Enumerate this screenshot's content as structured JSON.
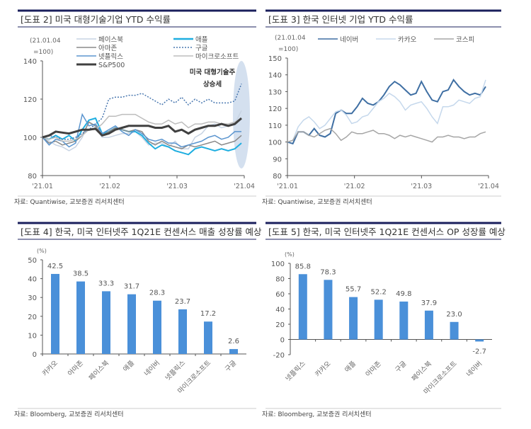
{
  "chart_data": [
    {
      "type": "line",
      "title": "[도표 2] 미국 대형기술기업 YTD 수익률",
      "unit": "(21.01.04\n=100)",
      "unit_lines": [
        "(21.01.04",
        "=100)"
      ],
      "ylim": [
        80,
        140
      ],
      "yticks": [
        80,
        100,
        120,
        140
      ],
      "xticks": [
        "'21.01",
        "'21.02",
        "'21.03",
        "'21.04"
      ],
      "annotation": [
        "미국 대형기술주",
        "상승세"
      ],
      "source": "자료: Quantiwise, 교보증권 리서치센터",
      "series": [
        {
          "name": "페이스북",
          "color": "#c7d3e3",
          "values": [
            100,
            98,
            96,
            95,
            93,
            95,
            100,
            108,
            105,
            100,
            100,
            101,
            102,
            102,
            103,
            100,
            96,
            97,
            97,
            95,
            98,
            94,
            94,
            100,
            102,
            106,
            107,
            105,
            106,
            107,
            114
          ]
        },
        {
          "name": "애플",
          "color": "#1eaee0",
          "values": [
            100,
            99,
            101,
            99,
            101,
            98,
            104,
            109,
            110,
            102,
            103,
            105,
            104,
            103,
            103,
            101,
            97,
            94,
            96,
            95,
            93,
            92,
            91,
            94,
            95,
            94,
            93,
            94,
            93,
            94,
            97
          ]
        },
        {
          "name": "아마존",
          "color": "#8a8a8a",
          "values": [
            100,
            97,
            98,
            96,
            97,
            98,
            101,
            108,
            106,
            101,
            103,
            105,
            104,
            103,
            104,
            103,
            98,
            96,
            98,
            96,
            95,
            94,
            96,
            95,
            96,
            97,
            98,
            96,
            97,
            98,
            101
          ]
        },
        {
          "name": "구글",
          "color": "#4a78b0",
          "dashed": true,
          "values": [
            100,
            101,
            100,
            99,
            99,
            100,
            102,
            104,
            107,
            110,
            120,
            121,
            121,
            122,
            122,
            123,
            121,
            119,
            117,
            120,
            118,
            121,
            117,
            120,
            118,
            120,
            118,
            118,
            118,
            119,
            128
          ]
        },
        {
          "name": "넷플릭스",
          "color": "#5b95cf",
          "values": [
            100,
            96,
            99,
            98,
            95,
            97,
            112,
            106,
            107,
            102,
            104,
            106,
            103,
            101,
            104,
            102,
            99,
            98,
            99,
            97,
            97,
            95,
            96,
            97,
            98,
            100,
            101,
            99,
            100,
            103,
            103
          ]
        },
        {
          "name": "마이크로소프트",
          "color": "#bdbdbd",
          "values": [
            100,
            99,
            100,
            98,
            98,
            99,
            101,
            104,
            104,
            107,
            111,
            111,
            112,
            112,
            112,
            110,
            108,
            107,
            107,
            109,
            107,
            108,
            105,
            107,
            107,
            108,
            108,
            107,
            107,
            108,
            110
          ]
        },
        {
          "name": "S&P500",
          "color": "#404040",
          "bold": true,
          "values": [
            100,
            101,
            103,
            102.5,
            102,
            103,
            104,
            104,
            104.5,
            101,
            102,
            104,
            105,
            106,
            106,
            106,
            106,
            105,
            105,
            106,
            103,
            104,
            102,
            104,
            105,
            106,
            106,
            107,
            106,
            107,
            110
          ]
        }
      ]
    },
    {
      "type": "line",
      "title": "[도표 3] 한국 인터넷 기업 YTD 수익률",
      "unit_lines": [
        "(21.01.04",
        "=100)"
      ],
      "ylim": [
        80,
        150
      ],
      "yticks": [
        80,
        90,
        100,
        110,
        120,
        130,
        140,
        150
      ],
      "xticks": [
        "'21.01",
        "'21.02",
        "'21.03",
        "'21.04"
      ],
      "source": "자료: Quantiwise, 교보증권 리서치센터",
      "series": [
        {
          "name": "네이버",
          "color": "#3f6fa3",
          "values": [
            100,
            99,
            106,
            106,
            104,
            108,
            104,
            103,
            105,
            117,
            119,
            117,
            117,
            121,
            126,
            123,
            122,
            124,
            128,
            133,
            136,
            134,
            131,
            128,
            129,
            136,
            130,
            125,
            124,
            130,
            131,
            137,
            133,
            130,
            128,
            129,
            128,
            133
          ]
        },
        {
          "name": "카카오",
          "color": "#c5d8ec",
          "values": [
            100,
            101,
            109,
            113,
            115,
            112,
            108,
            110,
            114,
            118,
            119,
            116,
            111,
            112,
            115,
            116,
            120,
            124,
            126,
            129,
            127,
            124,
            119,
            122,
            123,
            124,
            120,
            115,
            111,
            121,
            121,
            122,
            125,
            124,
            123,
            126,
            127,
            137
          ]
        },
        {
          "name": "코스피",
          "color": "#a6a6a6",
          "values": [
            100,
            101,
            106,
            106,
            104,
            103,
            105,
            107,
            108,
            105,
            101,
            103,
            106,
            105,
            105,
            106,
            107,
            105,
            105,
            104,
            102,
            104,
            103,
            104,
            103,
            102,
            101,
            100,
            103,
            103,
            104,
            103,
            103,
            102,
            103,
            103,
            105,
            106
          ]
        }
      ]
    },
    {
      "type": "bar",
      "title": "[도표 4] 한국, 미국 인터넷주 1Q21E 컨센서스 매출 성장률 예상",
      "unit": "(%)",
      "ylim": [
        0,
        50
      ],
      "yticks": [
        0,
        10,
        20,
        30,
        40,
        50
      ],
      "source": "자료: Bloomberg, 교보증권 리서치센터",
      "categories": [
        "카카오",
        "아마존",
        "페이스북",
        "애플",
        "네이버",
        "넷플릭스",
        "마이크로소프트",
        "구글"
      ],
      "values": [
        42.5,
        38.5,
        33.3,
        31.7,
        28.3,
        23.7,
        17.2,
        2.6
      ],
      "labels": [
        "42.5",
        "38.5",
        "33.3",
        "31.7",
        "28.3",
        "23.7",
        "17.2",
        "2.6"
      ],
      "color": "#4a90d9"
    },
    {
      "type": "bar",
      "title": "[도표 5] 한국, 미국 인터넷주 1Q21E 컨센서스 OP 성장률 예상",
      "unit": "(%)",
      "ylim": [
        -20,
        100
      ],
      "yticks": [
        -20,
        0,
        20,
        40,
        60,
        80,
        100
      ],
      "source": "자료: Bloomberg, 교보증권 리서치센터",
      "categories": [
        "넷플릭스",
        "카카오",
        "애플",
        "아마존",
        "구글",
        "페이스북",
        "마이크로소프트",
        "네이버"
      ],
      "values": [
        85.8,
        78.3,
        55.7,
        52.2,
        49.8,
        37.9,
        23.0,
        -2.7
      ],
      "labels": [
        "85.8",
        "78.3",
        "55.7",
        "52.2",
        "49.8",
        "37.9",
        "23.0",
        "-2.7"
      ],
      "color": "#4a90d9"
    }
  ]
}
